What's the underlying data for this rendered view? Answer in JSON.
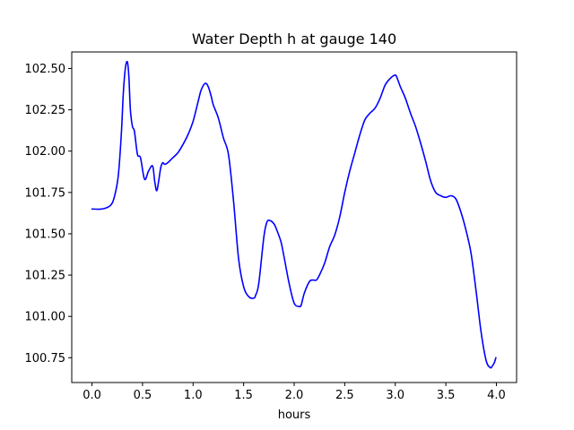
{
  "chart_data": {
    "type": "line",
    "title": "Water Depth h at gauge 140",
    "xlabel": "hours",
    "ylabel": "",
    "xlim": [
      -0.2,
      4.2
    ],
    "ylim": [
      100.6,
      102.6
    ],
    "grid": false,
    "x_ticks": [
      0.0,
      0.5,
      1.0,
      1.5,
      2.0,
      2.5,
      3.0,
      3.5,
      4.0
    ],
    "x_tick_labels": [
      "0.0",
      "0.5",
      "1.0",
      "1.5",
      "2.0",
      "2.5",
      "3.0",
      "3.5",
      "4.0"
    ],
    "y_ticks": [
      100.75,
      101.0,
      101.25,
      101.5,
      101.75,
      102.0,
      102.25,
      102.5
    ],
    "y_tick_labels": [
      "100.75",
      "101.00",
      "101.25",
      "101.50",
      "101.75",
      "102.00",
      "102.25",
      "102.50"
    ],
    "series": [
      {
        "color": "#0000ff",
        "x": [
          0.0,
          0.1,
          0.18,
          0.22,
          0.26,
          0.29,
          0.31,
          0.33,
          0.35,
          0.365,
          0.38,
          0.4,
          0.42,
          0.45,
          0.48,
          0.52,
          0.56,
          0.6,
          0.62,
          0.64,
          0.66,
          0.68,
          0.7,
          0.72,
          0.75,
          0.8,
          0.85,
          0.9,
          0.95,
          1.0,
          1.05,
          1.08,
          1.12,
          1.15,
          1.18,
          1.2,
          1.25,
          1.3,
          1.35,
          1.4,
          1.45,
          1.5,
          1.55,
          1.6,
          1.62,
          1.65,
          1.7,
          1.73,
          1.76,
          1.8,
          1.83,
          1.87,
          1.9,
          1.95,
          2.0,
          2.05,
          2.07,
          2.1,
          2.15,
          2.18,
          2.22,
          2.25,
          2.3,
          2.35,
          2.4,
          2.45,
          2.5,
          2.55,
          2.6,
          2.65,
          2.7,
          2.75,
          2.8,
          2.85,
          2.9,
          2.95,
          3.0,
          3.02,
          3.05,
          3.1,
          3.15,
          3.2,
          3.25,
          3.3,
          3.35,
          3.4,
          3.45,
          3.5,
          3.55,
          3.6,
          3.65,
          3.7,
          3.75,
          3.8,
          3.85,
          3.9,
          3.94,
          3.96,
          3.98,
          3.995
        ],
        "y": [
          101.65,
          101.65,
          101.67,
          101.72,
          101.85,
          102.1,
          102.35,
          102.5,
          102.54,
          102.45,
          102.25,
          102.15,
          102.12,
          101.98,
          101.96,
          101.83,
          101.88,
          101.91,
          101.82,
          101.76,
          101.82,
          101.9,
          101.93,
          101.92,
          101.93,
          101.96,
          101.99,
          102.04,
          102.1,
          102.18,
          102.3,
          102.37,
          102.41,
          102.39,
          102.33,
          102.28,
          102.2,
          102.08,
          101.98,
          101.7,
          101.35,
          101.18,
          101.12,
          101.11,
          101.13,
          101.2,
          101.48,
          101.57,
          101.58,
          101.56,
          101.52,
          101.45,
          101.36,
          101.2,
          101.08,
          101.06,
          101.07,
          101.14,
          101.21,
          101.22,
          101.22,
          101.25,
          101.32,
          101.42,
          101.49,
          101.6,
          101.75,
          101.88,
          101.99,
          102.1,
          102.19,
          102.23,
          102.26,
          102.32,
          102.4,
          102.44,
          102.46,
          102.44,
          102.39,
          102.32,
          102.23,
          102.15,
          102.05,
          101.94,
          101.82,
          101.75,
          101.73,
          101.72,
          101.73,
          101.71,
          101.63,
          101.52,
          101.38,
          101.15,
          100.9,
          100.73,
          100.69,
          100.7,
          100.72,
          100.75
        ]
      }
    ]
  }
}
